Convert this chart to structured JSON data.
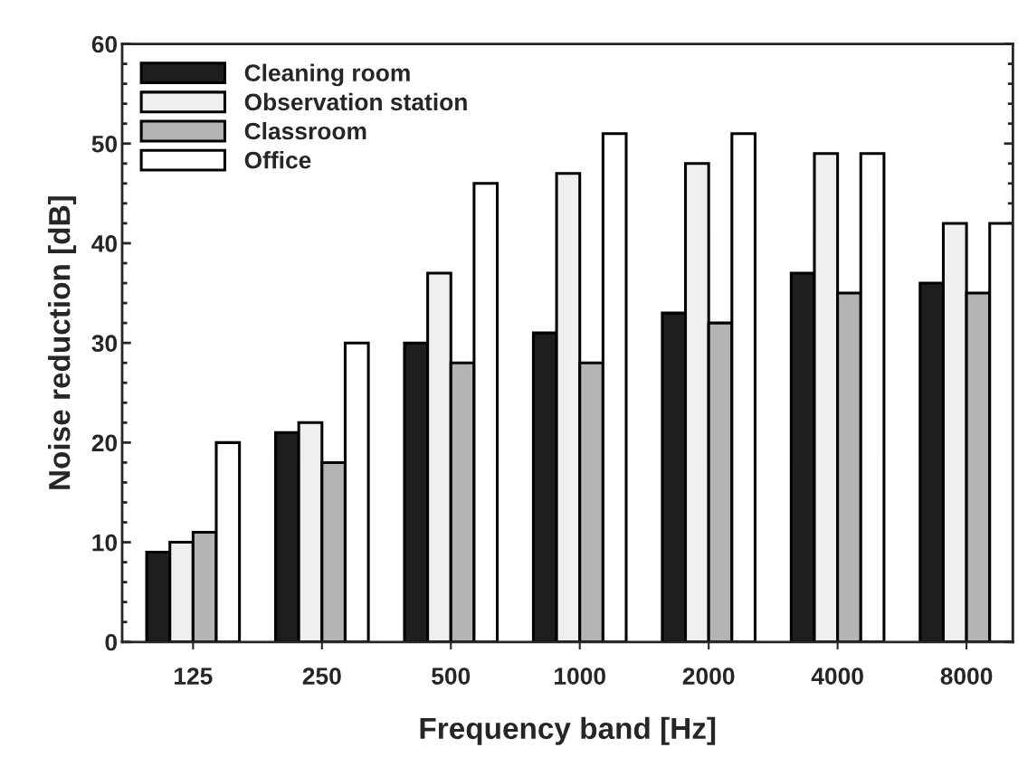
{
  "chart_data": {
    "type": "bar",
    "xlabel": "Frequency band [Hz]",
    "ylabel": "Noise reduction [dB]",
    "categories": [
      "125",
      "250",
      "500",
      "1000",
      "2000",
      "4000",
      "8000"
    ],
    "series": [
      {
        "name": "Cleaning room",
        "color": "#1e1e1e",
        "values": [
          9,
          21,
          30,
          31,
          33,
          37,
          36
        ]
      },
      {
        "name": "Observation station",
        "color": "#efefef",
        "values": [
          10,
          22,
          37,
          47,
          48,
          49,
          42
        ]
      },
      {
        "name": "Classroom",
        "color": "#b4b4b4",
        "values": [
          11,
          18,
          28,
          28,
          32,
          35,
          35
        ]
      },
      {
        "name": "Office",
        "color": "#ffffff",
        "values": [
          20,
          30,
          46,
          51,
          51,
          49,
          42
        ]
      }
    ],
    "ylim": [
      0,
      60
    ],
    "yticks": [
      0,
      10,
      20,
      30,
      40,
      50,
      60
    ],
    "grid": false,
    "legend": "top left"
  }
}
